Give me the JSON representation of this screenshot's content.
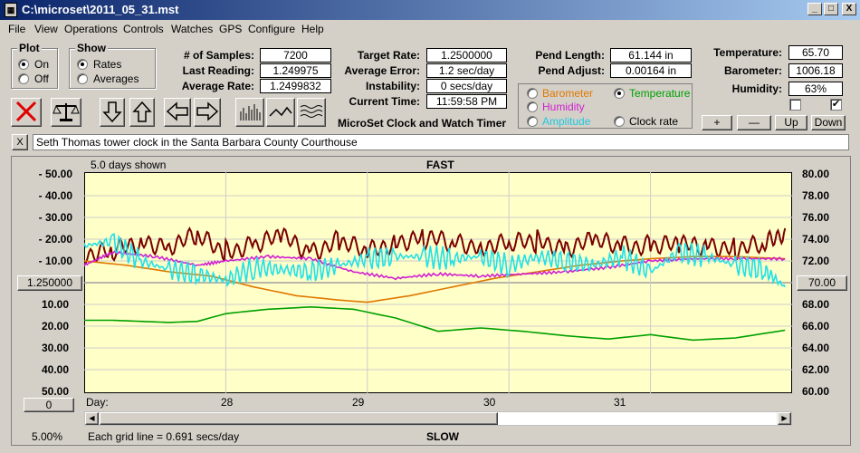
{
  "window": {
    "title": "C:\\microset\\2011_05_31.mst",
    "icon": "app-icon",
    "controls": {
      "minimize": "_",
      "maximize": "□",
      "close": "X"
    }
  },
  "menu": [
    "File",
    "View",
    "Operations",
    "Controls",
    "Watches",
    "GPS",
    "Configure",
    "Help"
  ],
  "plot": {
    "title": "Plot",
    "on": "On",
    "off": "Off",
    "selected": "On"
  },
  "show": {
    "title": "Show",
    "rates": "Rates",
    "averages": "Averages",
    "selected": "Rates"
  },
  "stats": {
    "samples_label": "# of Samples:",
    "samples": "7200",
    "last_label": "Last Reading:",
    "last": "1.249975",
    "avg_label": "Average Rate:",
    "avg": "1.2499832"
  },
  "rates": {
    "target_label": "Target Rate:",
    "target": "1.2500000",
    "avgerr_label": "Average Error:",
    "avgerr": "1.2 sec/day",
    "instab_label": "Instability:",
    "instab": "0 secs/day",
    "time_label": "Current Time:",
    "time": "11:59:58 PM",
    "app_name": "MicroSet Clock and Watch Timer"
  },
  "pend": {
    "length_label": "Pend Length:",
    "length": "61.144 in",
    "adjust_label": "Pend Adjust:",
    "adjust": "0.00164 in"
  },
  "sensors": {
    "temp_label": "Temperature:",
    "temp": "65.70",
    "baro_label": "Barometer:",
    "baro": "1006.18",
    "hum_label": "Humidity:",
    "hum": "63%"
  },
  "overlay_options": {
    "barometer": "Barometer",
    "temperature": "Temperature",
    "humidity": "Humidity",
    "amplitude": "Amplitude",
    "clock_rate": "Clock rate",
    "selected": "Temperature"
  },
  "adjust_buttons": {
    "plus": "+",
    "minus": "—",
    "up": "Up",
    "down": "Down"
  },
  "description": "Seth Thomas tower clock in the Santa Barbara County Courthouse",
  "desc_close": "X",
  "chart": {
    "days_shown": "5.0 days shown",
    "fast": "FAST",
    "slow": "SLOW",
    "center_left": "1.250000",
    "center_right": "70.00",
    "offset_button": "0",
    "day_label": "Day:",
    "grid_note": "Each grid line = 0.691 secs/day",
    "zoom": "5.00%"
  },
  "colors": {
    "rate": "#7a0000",
    "barometer": "#e07800",
    "temperature": "#00a000",
    "humidity": "#d020d0",
    "amplitude": "#20e0e8",
    "plot_bg": "#ffffc8",
    "stop": "#e00000"
  },
  "chart_data": {
    "type": "line",
    "x_label": "Day:",
    "x_ticks": [
      "28",
      "29",
      "30",
      "31"
    ],
    "y_left_ticks": [
      "- 50.00",
      "- 40.00",
      "- 30.00",
      "- 20.00",
      "- 10.00",
      "10.00",
      "20.00",
      "30.00",
      "40.00",
      "50.00"
    ],
    "y_right_ticks": [
      "80.00",
      "78.00",
      "76.00",
      "74.00",
      "72.00",
      "68.00",
      "66.00",
      "64.00",
      "62.00",
      "60.00"
    ],
    "x_range": [
      27,
      32
    ],
    "series": [
      {
        "color": "#7a0000",
        "x": [
          27.0,
          27.2,
          27.4,
          27.6,
          27.8,
          28.0,
          28.2,
          28.4,
          28.6,
          28.8,
          29.0,
          29.2,
          29.4,
          29.6,
          29.8,
          30.0,
          30.2,
          30.4,
          30.6,
          30.8,
          31.0,
          31.2,
          31.4,
          31.6,
          31.8,
          31.95
        ],
        "y": [
          14,
          13,
          19,
          18,
          20,
          15,
          18,
          20,
          15,
          19,
          13,
          20,
          20,
          18,
          18,
          17,
          19,
          17,
          18,
          17,
          18,
          16,
          18,
          16,
          16,
          25
        ]
      },
      {
        "color": "#e07800",
        "x": [
          27.0,
          27.3,
          27.6,
          27.9,
          28.2,
          28.5,
          28.8,
          29.0,
          29.3,
          29.6,
          29.9,
          30.2,
          30.5,
          30.8,
          31.0,
          31.3,
          31.6,
          31.95
        ],
        "y": [
          10,
          8,
          5,
          3,
          -2,
          -6,
          -8,
          -9,
          -6,
          -2,
          2,
          5,
          8,
          10,
          11,
          12,
          12,
          11
        ]
      },
      {
        "color": "#00a000",
        "x": [
          27.0,
          27.2,
          27.4,
          27.6,
          27.8,
          28.0,
          28.3,
          28.6,
          28.9,
          29.2,
          29.5,
          29.8,
          30.1,
          30.4,
          30.7,
          31.0,
          31.3,
          31.6,
          31.95
        ],
        "y": [
          66.6,
          66.6,
          66.5,
          66.4,
          66.5,
          67.2,
          67.6,
          67.8,
          67.6,
          66.8,
          65.6,
          65.9,
          65.6,
          65.2,
          64.9,
          65.3,
          64.8,
          65.0,
          65.7
        ]
      },
      {
        "color": "#d020d0",
        "x": [
          27.0,
          27.2,
          27.5,
          27.8,
          28.0,
          28.3,
          28.6,
          28.9,
          29.2,
          29.5,
          29.8,
          30.1,
          30.4,
          30.7,
          31.0,
          31.3,
          31.6,
          31.95
        ],
        "y": [
          8,
          14,
          12,
          8,
          10,
          12,
          11,
          5,
          2,
          4,
          3,
          4,
          5,
          7,
          10,
          11,
          11,
          11
        ]
      },
      {
        "color": "#20e0e8",
        "x": [
          27.0,
          27.2,
          27.4,
          27.6,
          27.8,
          28.0,
          28.2,
          28.4,
          28.6,
          28.8,
          29.0,
          29.2,
          29.4,
          29.6,
          29.8,
          30.0,
          30.2,
          30.4,
          30.6,
          30.8,
          31.0,
          31.2,
          31.4,
          31.6,
          31.8,
          31.95
        ],
        "y": [
          17,
          19,
          10,
          6,
          4,
          1,
          7,
          6,
          5,
          8,
          11,
          12,
          12,
          11,
          12,
          8,
          12,
          10,
          8,
          12,
          5,
          14,
          12,
          8,
          6,
          -2
        ]
      }
    ]
  }
}
